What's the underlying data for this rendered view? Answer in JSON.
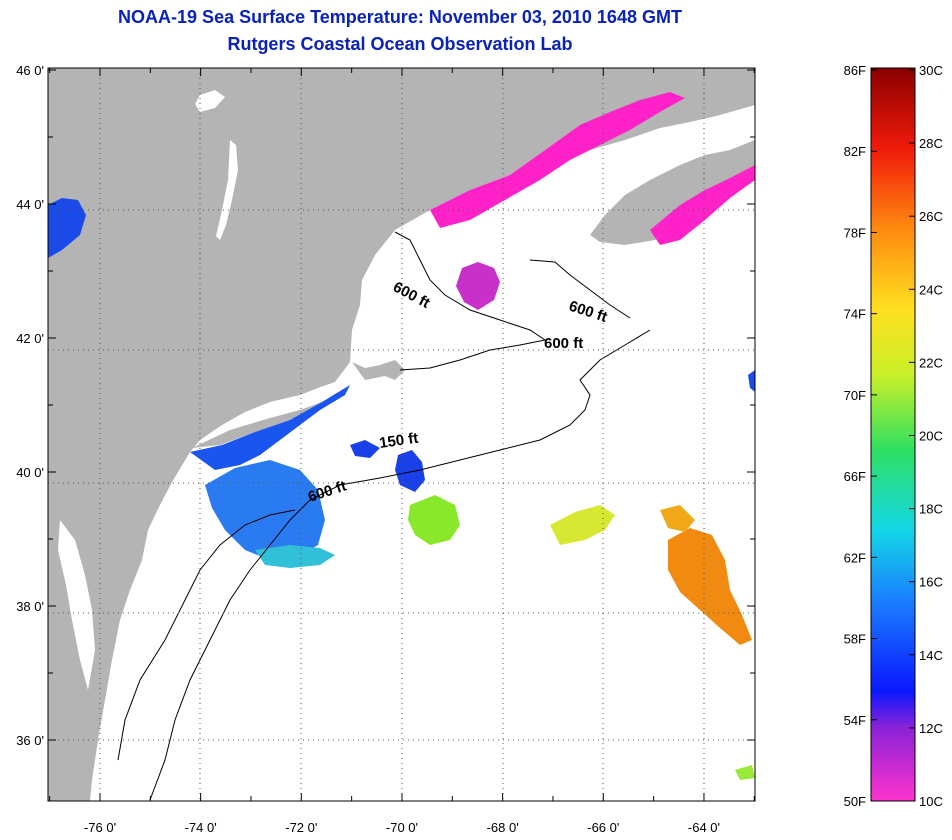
{
  "title": {
    "line1": "NOAA-19 Sea Surface Temperature:  November 03, 2010 1648 GMT",
    "line2": "Rutgers Coastal Ocean Observation Lab"
  },
  "map": {
    "lat_ticks": [
      {
        "value": 46,
        "label": "46 0'"
      },
      {
        "value": 44,
        "label": "44 0'"
      },
      {
        "value": 42,
        "label": "42 0'"
      },
      {
        "value": 40,
        "label": "40 0'"
      },
      {
        "value": 38,
        "label": "38 0'"
      },
      {
        "value": 36,
        "label": "36 0'"
      }
    ],
    "lon_ticks": [
      {
        "value": -76,
        "label": "-76 0'"
      },
      {
        "value": -74,
        "label": "-74 0'"
      },
      {
        "value": -72,
        "label": "-72 0'"
      },
      {
        "value": -70,
        "label": "-70 0'"
      },
      {
        "value": -68,
        "label": "-68 0'"
      },
      {
        "value": -66,
        "label": "-66 0'"
      },
      {
        "value": -64,
        "label": "-64 0'"
      }
    ],
    "isobath_labels": [
      "600 ft",
      "600 ft",
      "600 ft",
      "150 ft",
      "600 ft"
    ],
    "colors": {
      "land": "#b4b4b4",
      "ocean": "#ffffff",
      "title": "#0a22b8",
      "grid": "#555555"
    }
  },
  "colorbar": {
    "fahrenheit_labels": [
      "86F",
      "82F",
      "78F",
      "74F",
      "70F",
      "66F",
      "62F",
      "58F",
      "54F",
      "50F"
    ],
    "celsius_labels": [
      "30C",
      "28C",
      "26C",
      "24C",
      "22C",
      "20C",
      "18C",
      "16C",
      "14C",
      "12C",
      "10C"
    ]
  }
}
